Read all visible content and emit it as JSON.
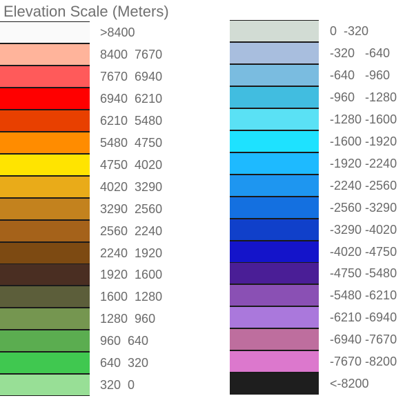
{
  "chart_data": {
    "type": "table",
    "title": "Elevation Scale (Meters)",
    "columns": [
      {
        "name": "left",
        "entries": [
          {
            "label": ">8400",
            "color": "#FAFAFA"
          },
          {
            "label": "8400  7670",
            "color": "#FFB49B"
          },
          {
            "label": "7670  6940",
            "color": "#FF5A5A"
          },
          {
            "label": "6940  6210",
            "color": "#FF0000"
          },
          {
            "label": "6210  5480",
            "color": "#E84000"
          },
          {
            "label": "5480  4750",
            "color": "#FF8C00"
          },
          {
            "label": "4750  4020",
            "color": "#FFE400"
          },
          {
            "label": "4020  3290",
            "color": "#E9AB19"
          },
          {
            "label": "3290  2560",
            "color": "#C3821E"
          },
          {
            "label": "2560  2240",
            "color": "#A5621A"
          },
          {
            "label": "2240  1920",
            "color": "#7D4A12"
          },
          {
            "label": "1920  1600",
            "color": "#4A2E22"
          },
          {
            "label": "1600  1280",
            "color": "#5C5E3A"
          },
          {
            "label": "1280  960",
            "color": "#759650"
          },
          {
            "label": "960  640",
            "color": "#5BAD50"
          },
          {
            "label": "640  320",
            "color": "#40C850"
          },
          {
            "label": "320  0",
            "color": "#98DF96"
          }
        ]
      },
      {
        "name": "right",
        "entries": [
          {
            "label": "0  -320",
            "color": "#D2DCD4"
          },
          {
            "label": "-320   -640",
            "color": "#A8BEDE"
          },
          {
            "label": "-640   -960",
            "color": "#7ABCE0"
          },
          {
            "label": "-960   -1280",
            "color": "#41BDE0"
          },
          {
            "label": "-1280 -1600",
            "color": "#5AE1F5"
          },
          {
            "label": "-1600 -1920",
            "color": "#1EE2FF"
          },
          {
            "label": "-1920 -2240",
            "color": "#1EBAFF"
          },
          {
            "label": "-2240 -2560",
            "color": "#1E96F0"
          },
          {
            "label": "-2560 -3290",
            "color": "#1470E0"
          },
          {
            "label": "-3290 -4020",
            "color": "#1040CA"
          },
          {
            "label": "-4020 -4750",
            "color": "#1414CA"
          },
          {
            "label": "-4750 -5480",
            "color": "#4A1E96"
          },
          {
            "label": "-5480 -6210",
            "color": "#8A50B4"
          },
          {
            "label": "-6210 -6940",
            "color": "#AA78DC"
          },
          {
            "label": "-6940 -7670",
            "color": "#BE6E9E"
          },
          {
            "label": "-7670 -8200",
            "color": "#DC78CD"
          },
          {
            "label": "<-8200",
            "color": "#1E1E1E"
          }
        ]
      }
    ]
  }
}
